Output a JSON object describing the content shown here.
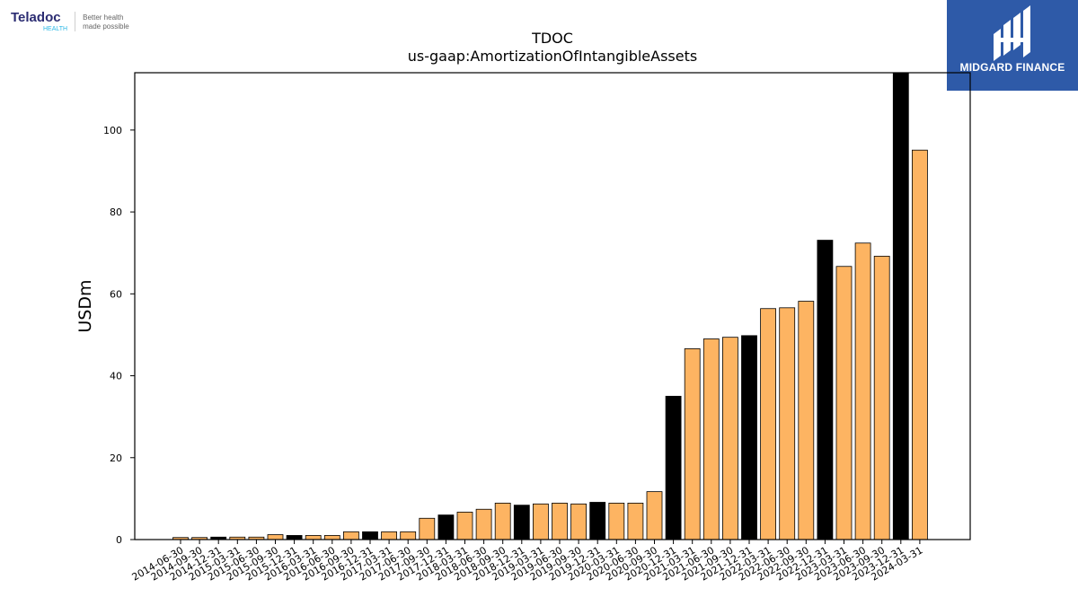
{
  "header": {
    "brand_name": "Teladoc",
    "brand_sub": "HEALTH",
    "tagline_line1": "Better health",
    "tagline_line2": "made possible"
  },
  "badge": {
    "text": "MIDGARD FINANCE",
    "color": "#2e5aa8"
  },
  "colors": {
    "bar_default": "#fdb462",
    "bar_highlight": "#000000",
    "bar_edge": "#000000"
  },
  "chart_data": {
    "type": "bar",
    "title": "TDOC",
    "subtitle": "us-gaap:AmortizationOfIntangibleAssets",
    "xlabel": "",
    "ylabel": "USDm",
    "ylim": [
      0,
      114
    ],
    "yticks": [
      0,
      20,
      40,
      60,
      80,
      100
    ],
    "grid": false,
    "categories": [
      "2014-06-30",
      "2014-09-30",
      "2014-12-31",
      "2015-03-31",
      "2015-06-30",
      "2015-09-30",
      "2015-12-31",
      "2016-03-31",
      "2016-06-30",
      "2016-09-30",
      "2016-12-31",
      "2017-03-31",
      "2017-06-30",
      "2017-09-30",
      "2017-12-31",
      "2018-03-31",
      "2018-06-30",
      "2018-09-30",
      "2018-12-31",
      "2019-03-31",
      "2019-06-30",
      "2019-09-30",
      "2019-12-31",
      "2020-03-31",
      "2020-06-30",
      "2020-09-30",
      "2020-12-31",
      "2021-03-31",
      "2021-06-30",
      "2021-09-30",
      "2021-12-31",
      "2022-03-31",
      "2022-06-30",
      "2022-09-30",
      "2022-12-31",
      "2023-03-31",
      "2023-06-30",
      "2023-09-30",
      "2023-12-31",
      "2024-03-31"
    ],
    "values": [
      0.5,
      0.5,
      0.6,
      0.6,
      0.6,
      1.2,
      1.0,
      1.0,
      1.0,
      1.9,
      1.9,
      1.9,
      1.9,
      5.2,
      6.0,
      6.7,
      7.4,
      8.9,
      8.4,
      8.7,
      8.9,
      8.7,
      9.1,
      8.9,
      8.9,
      11.7,
      35.0,
      46.6,
      49.0,
      49.4,
      49.8,
      56.4,
      56.6,
      58.2,
      73.1,
      66.7,
      72.4,
      69.2,
      114.0,
      95.1
    ],
    "highlight": [
      false,
      false,
      true,
      false,
      false,
      false,
      true,
      false,
      false,
      false,
      true,
      false,
      false,
      false,
      true,
      false,
      false,
      false,
      true,
      false,
      false,
      false,
      true,
      false,
      false,
      false,
      true,
      false,
      false,
      false,
      true,
      false,
      false,
      false,
      true,
      false,
      false,
      false,
      true,
      false
    ]
  }
}
